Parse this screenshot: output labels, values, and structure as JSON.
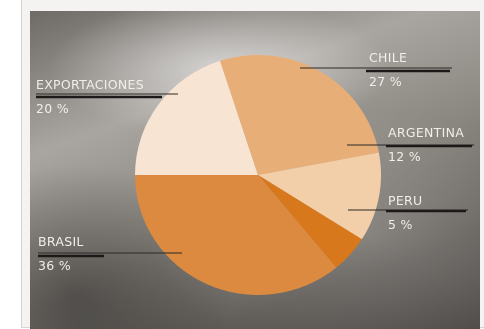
{
  "chart_data": {
    "type": "pie",
    "title": "",
    "slices": [
      {
        "label": "CHILE",
        "value": 27,
        "value_label": "27 %",
        "color": "#e8ae78"
      },
      {
        "label": "ARGENTINA",
        "value": 12,
        "value_label": "12 %",
        "color": "#f2cfa8"
      },
      {
        "label": "PERU",
        "value": 5,
        "value_label": "5 %",
        "color": "#d8781c"
      },
      {
        "label": "BRASIL",
        "value": 36,
        "value_label": "36 %",
        "color": "#dc8a40"
      },
      {
        "label": "EXPORTACIONES",
        "value": 20,
        "value_label": "20 %",
        "color": "#f8e4d2"
      }
    ],
    "legend": "none",
    "data_labels": "outside with leader lines"
  }
}
